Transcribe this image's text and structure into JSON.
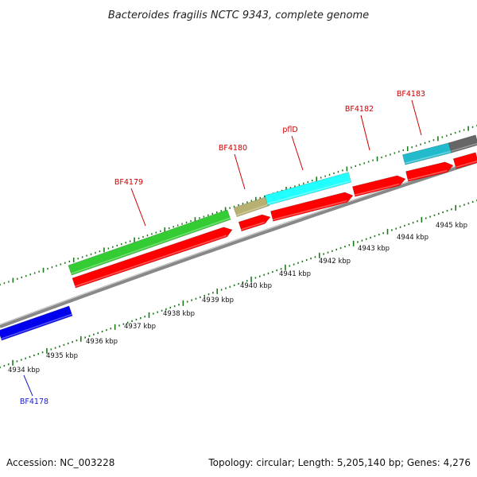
{
  "title": "Bacteroides fragilis NCTC 9343, complete genome",
  "footer": {
    "accession": "Accession: NC_003228",
    "summary": "Topology: circular; Length: 5,205,140 bp; Genes: 4,276"
  },
  "colors": {
    "tick": "#1a7a1a",
    "backbone": "#888888",
    "cds": "#ff0000",
    "gene_label_red": "#cc0000",
    "gene_label_blue": "#1a1acc"
  },
  "ticks": [
    "4934 kbp",
    "4935 kbp",
    "4936 kbp",
    "4937 kbp",
    "4938 kbp",
    "4939 kbp",
    "4940 kbp",
    "4941 kbp",
    "4942 kbp",
    "4943 kbp",
    "4944 kbp",
    "4945 kbp"
  ],
  "genes": [
    {
      "label": "BF4178",
      "color": "blue"
    },
    {
      "label": "BF4179",
      "color": "red"
    },
    {
      "label": "BF4180",
      "color": "red"
    },
    {
      "label": "pflD",
      "color": "red"
    },
    {
      "label": "BF4182",
      "color": "red"
    },
    {
      "label": "BF4183",
      "color": "red"
    }
  ],
  "feature_colors": {
    "blue": "#0000ee",
    "green": "#33cc33",
    "olive": "#b8b070",
    "cyan": "#22ffff",
    "teal": "#22bbcc",
    "gray": "#666666"
  }
}
